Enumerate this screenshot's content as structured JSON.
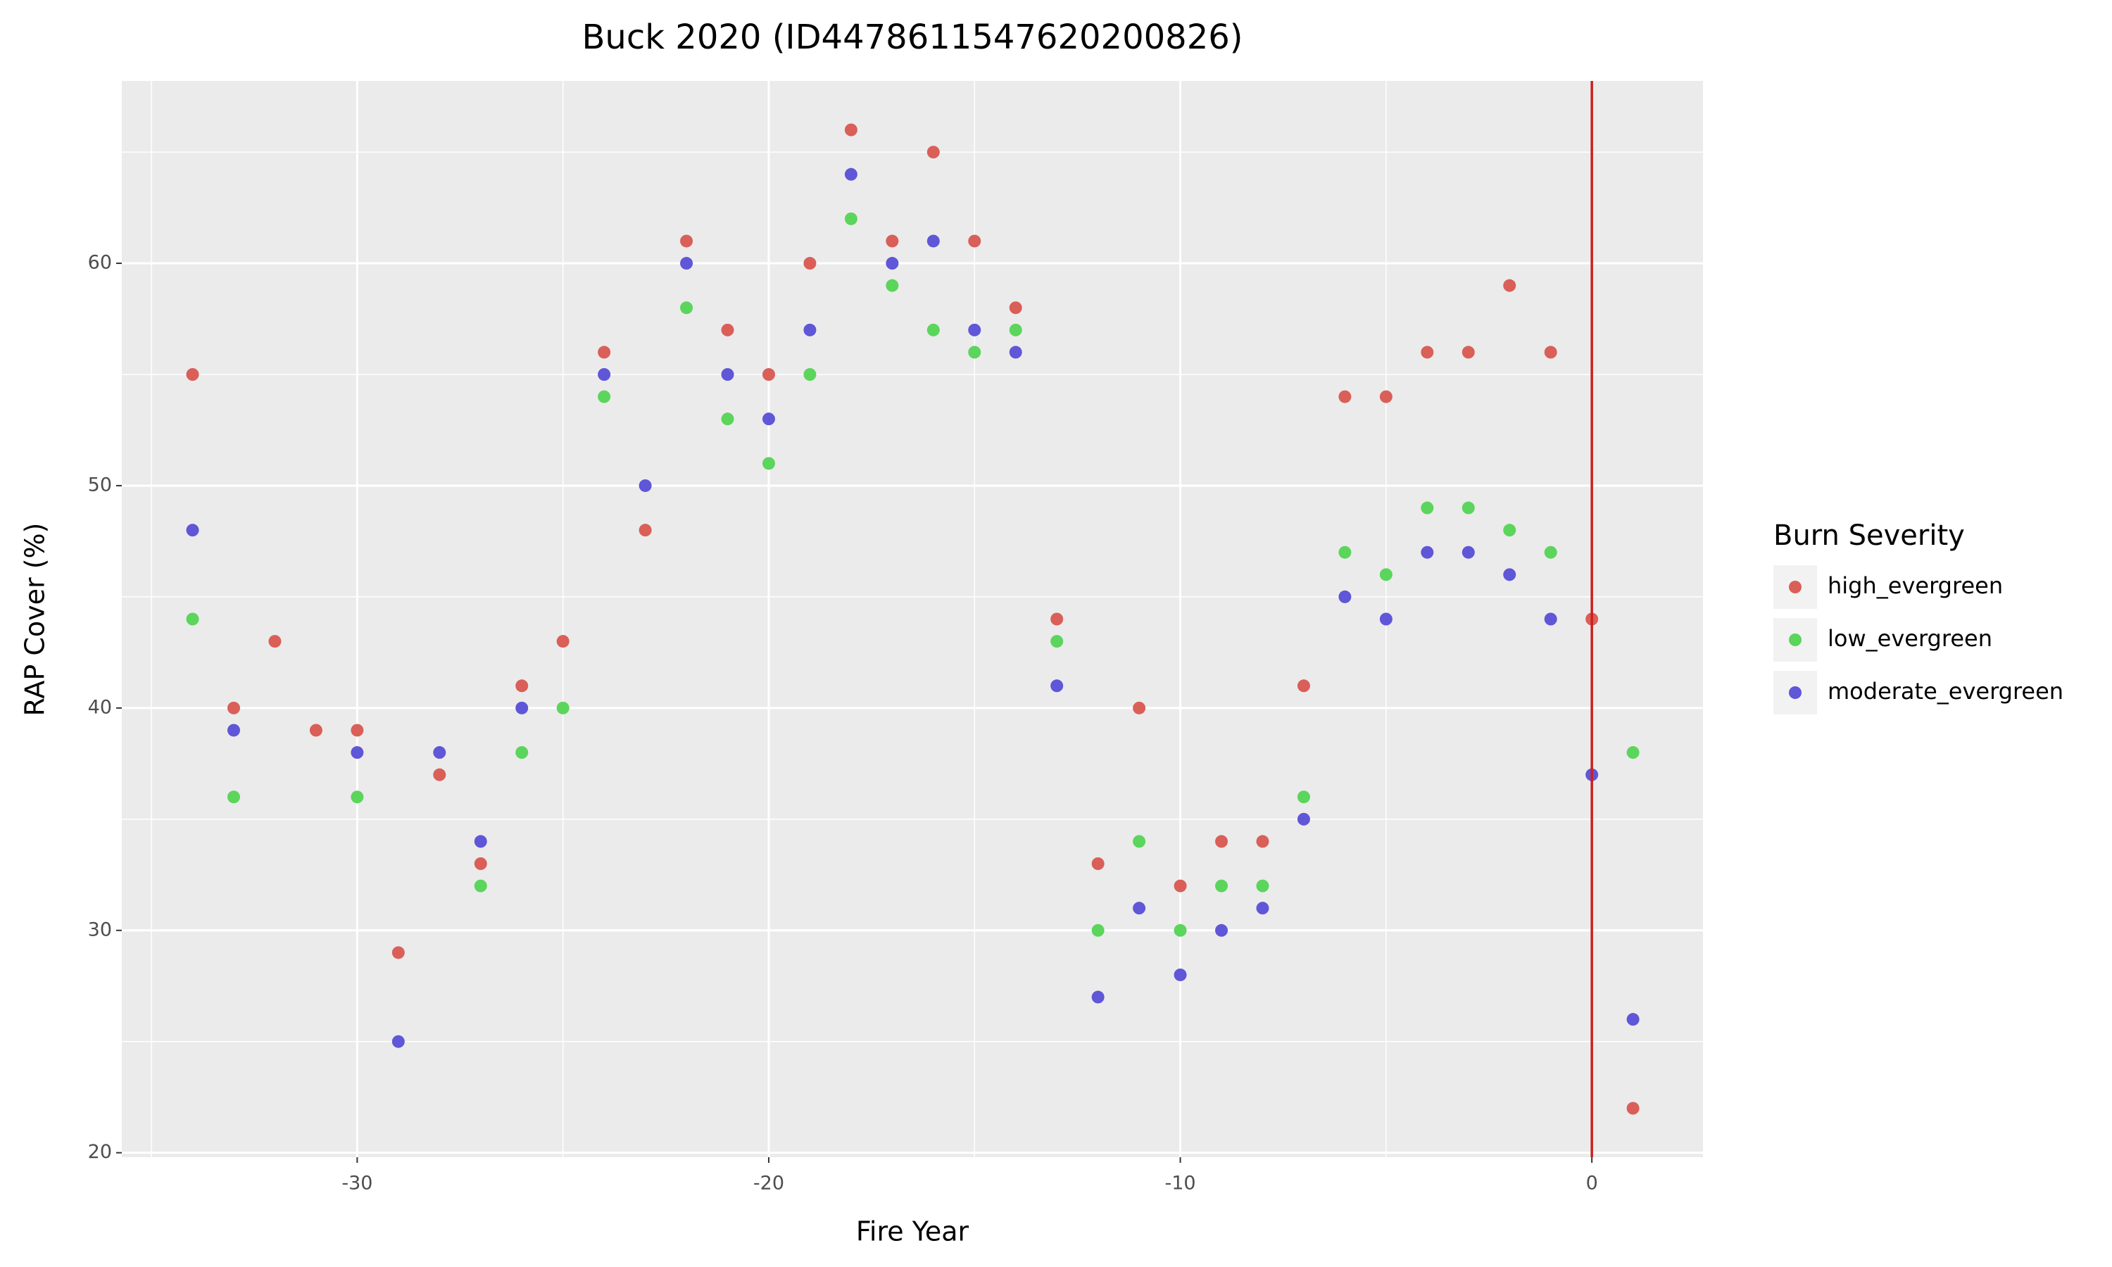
{
  "chart_data": {
    "type": "scatter",
    "title": "Buck 2020 (ID447861154762020082​6)",
    "x_label": "Fire Year",
    "y_label": "RAP Cover (%)",
    "legend_title": "Burn Severity",
    "legend": "right",
    "x": [
      -34,
      -33,
      -32,
      -31,
      -30,
      -29,
      -28,
      -27,
      -26,
      -25,
      -24,
      -23,
      -22,
      -21,
      -20,
      -19,
      -18,
      -17,
      -16,
      -15,
      -14,
      -13,
      -12,
      -11,
      -10,
      -9,
      -8,
      -7,
      -6,
      -5,
      -4,
      -3,
      -2,
      -1,
      0,
      1
    ],
    "series": [
      {
        "name": "high_evergreen",
        "color": "#d95f58",
        "values": [
          55,
          40,
          43,
          39,
          39,
          29,
          37,
          33,
          41,
          43,
          56,
          48,
          61,
          57,
          55,
          60,
          66,
          61,
          65,
          61,
          58,
          44,
          33,
          40,
          32,
          34,
          34,
          41,
          54,
          54,
          56,
          56,
          59,
          56,
          44,
          22
        ]
      },
      {
        "name": "low_evergreen",
        "color": "#5bd55b",
        "values": [
          44,
          36,
          null,
          null,
          36,
          null,
          null,
          32,
          38,
          40,
          54,
          null,
          58,
          53,
          51,
          55,
          62,
          59,
          57,
          56,
          57,
          43,
          30,
          34,
          30,
          32,
          32,
          36,
          47,
          46,
          49,
          49,
          48,
          47,
          null,
          38
        ]
      },
      {
        "name": "moderate_evergreen",
        "color": "#5f56d8",
        "values": [
          48,
          39,
          null,
          null,
          38,
          25,
          38,
          34,
          40,
          null,
          55,
          50,
          60,
          55,
          53,
          57,
          64,
          60,
          61,
          57,
          56,
          41,
          27,
          31,
          28,
          30,
          31,
          35,
          45,
          44,
          47,
          47,
          46,
          44,
          37,
          26
        ]
      }
    ],
    "xlim": [
      -35.72,
      2.7
    ],
    "ylim": [
      19.8,
      68.2
    ],
    "xticks": [
      -30,
      -20,
      -10,
      0
    ],
    "yticks": [
      20,
      30,
      40,
      50,
      60
    ],
    "vline": 0,
    "vline_color": "#cc1f1f",
    "grid": true
  }
}
